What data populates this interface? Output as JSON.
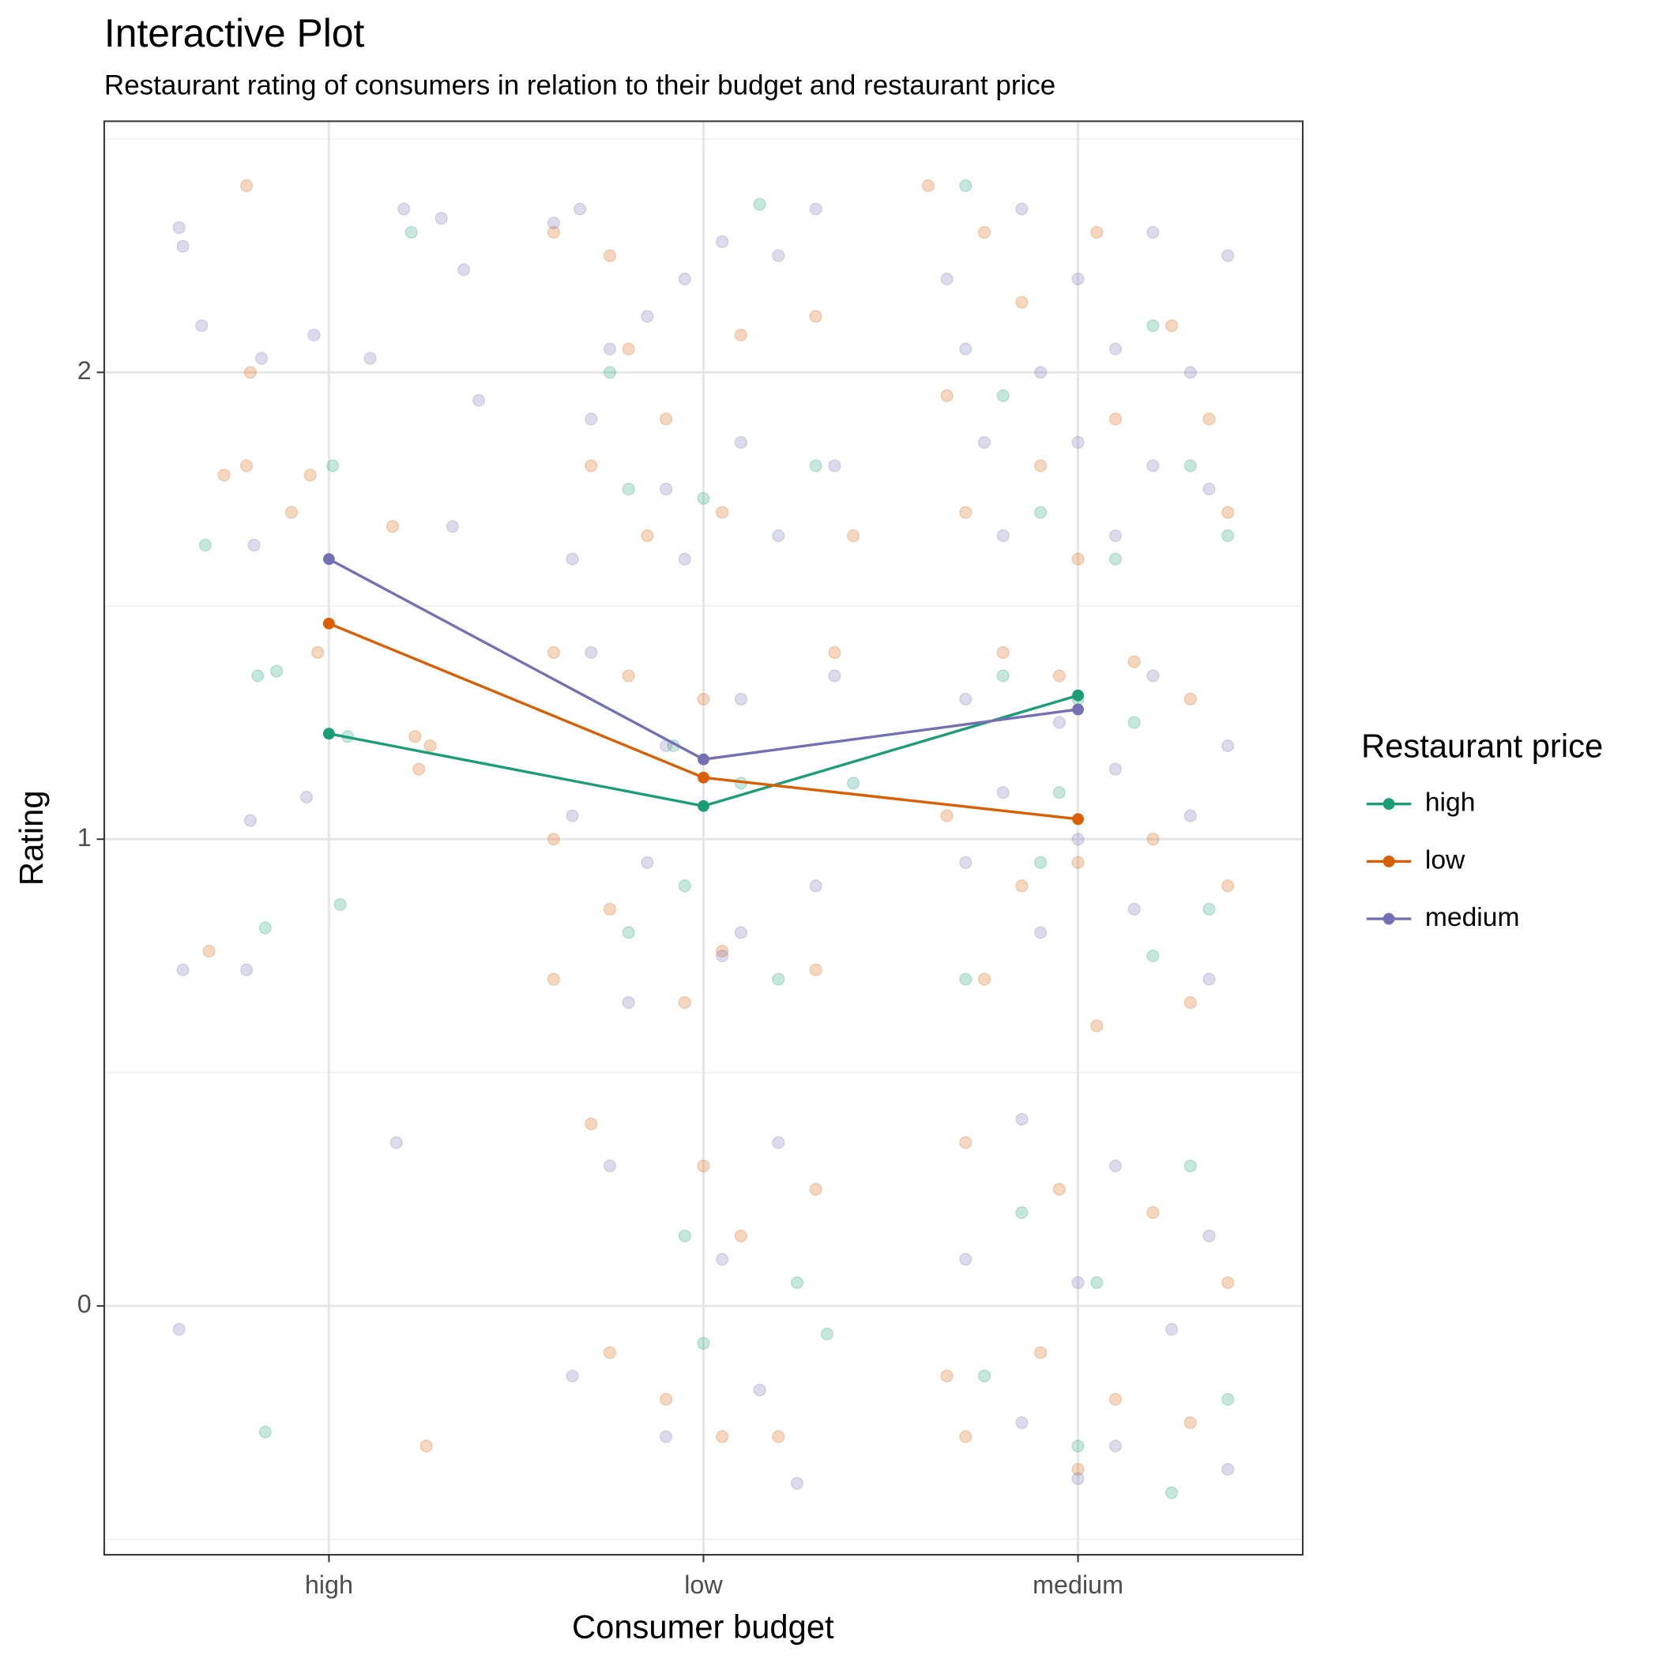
{
  "chart_data": [
    {
      "type": "scatter",
      "xlim": [
        0.4,
        3.6
      ],
      "ylim": [
        -0.533,
        2.538
      ],
      "opacity": 0.25,
      "series": [
        {
          "name": "high",
          "color": "#1b9e77",
          "x": [
            0.67,
            0.81,
            0.86,
            1.01,
            1.05,
            0.83,
            1.03,
            0.83,
            1.22,
            1.75,
            1.8,
            1.92,
            2.0,
            2.1,
            2.2,
            1.95,
            2.15,
            2.25,
            1.8,
            1.95,
            2.3,
            2.4,
            2.33,
            2.0,
            2.7,
            2.8,
            2.9,
            3.0,
            3.1,
            3.2,
            3.3,
            3.4,
            2.8,
            2.95,
            3.15,
            3.35,
            2.7,
            2.9,
            3.2,
            3.05,
            2.85,
            3.3,
            3.4,
            2.75,
            3.0,
            3.25
          ],
          "values": [
            1.63,
            1.35,
            1.36,
            1.8,
            1.22,
            0.81,
            0.86,
            -0.27,
            2.3,
            2.0,
            1.75,
            1.2,
            1.73,
            1.12,
            0.7,
            0.9,
            2.36,
            0.05,
            0.8,
            0.15,
            1.8,
            1.12,
            -0.06,
            -0.08,
            2.4,
            1.95,
            1.7,
            1.3,
            1.6,
            2.1,
            1.8,
            1.65,
            1.35,
            1.1,
            1.25,
            0.85,
            0.7,
            0.95,
            0.75,
            0.05,
            0.2,
            0.3,
            -0.2,
            -0.15,
            -0.3,
            -0.4
          ]
        },
        {
          "name": "low",
          "color": "#d95f02",
          "x": [
            0.78,
            0.79,
            0.72,
            0.78,
            0.95,
            0.9,
            1.17,
            0.97,
            1.23,
            1.27,
            1.24,
            0.68,
            1.26,
            1.6,
            1.75,
            1.8,
            1.9,
            2.1,
            2.3,
            1.7,
            1.85,
            2.05,
            2.4,
            1.6,
            1.8,
            2.0,
            2.35,
            1.6,
            1.75,
            2.05,
            2.3,
            1.6,
            1.95,
            1.7,
            2.0,
            2.1,
            1.75,
            2.05,
            2.2,
            2.3,
            1.9,
            2.6,
            2.75,
            2.85,
            3.05,
            3.25,
            3.35,
            2.65,
            2.9,
            3.1,
            3.4,
            2.7,
            3.0,
            2.8,
            2.95,
            3.15,
            3.3,
            2.65,
            2.85,
            3.0,
            3.2,
            3.4,
            2.75,
            3.05,
            3.3,
            2.7,
            2.95,
            3.2,
            3.4,
            2.65,
            2.9,
            3.1,
            3.3,
            2.7,
            3.0
          ],
          "values": [
            2.4,
            2.0,
            1.78,
            1.8,
            1.78,
            1.7,
            1.67,
            1.4,
            1.22,
            1.2,
            1.15,
            0.76,
            -0.3,
            2.3,
            2.25,
            2.05,
            1.9,
            2.08,
            2.12,
            1.8,
            1.65,
            1.7,
            1.65,
            1.4,
            1.35,
            1.3,
            1.4,
            1.0,
            0.85,
            0.76,
            0.72,
            0.7,
            0.65,
            0.39,
            0.3,
            0.15,
            -0.1,
            -0.28,
            -0.28,
            0.25,
            -0.2,
            2.4,
            2.3,
            2.15,
            2.3,
            2.1,
            1.9,
            1.95,
            1.8,
            1.9,
            1.7,
            1.7,
            1.6,
            1.4,
            1.35,
            1.38,
            1.3,
            1.05,
            0.9,
            0.95,
            1.0,
            0.9,
            0.7,
            0.6,
            0.65,
            0.35,
            0.25,
            0.2,
            0.05,
            -0.15,
            -0.1,
            -0.2,
            -0.25,
            -0.28,
            -0.35
          ]
        },
        {
          "name": "medium",
          "color": "#7570b3",
          "x": [
            0.6,
            0.61,
            0.66,
            0.82,
            0.96,
            1.11,
            1.2,
            1.3,
            1.36,
            1.4,
            1.33,
            0.8,
            0.61,
            0.78,
            0.79,
            0.94,
            1.18,
            0.6,
            1.6,
            1.67,
            1.75,
            1.85,
            1.95,
            2.05,
            2.2,
            2.3,
            1.7,
            1.9,
            2.1,
            2.35,
            1.65,
            1.95,
            2.2,
            1.7,
            1.9,
            2.1,
            2.35,
            1.65,
            1.85,
            2.1,
            2.3,
            1.8,
            2.05,
            1.75,
            2.05,
            2.2,
            1.65,
            1.9,
            2.15,
            2.25,
            2.65,
            2.85,
            3.0,
            3.2,
            3.4,
            2.7,
            2.9,
            3.1,
            3.3,
            2.75,
            3.0,
            3.2,
            3.35,
            2.8,
            3.1,
            2.7,
            2.95,
            3.2,
            3.4,
            2.8,
            3.1,
            2.7,
            3.0,
            3.3,
            2.9,
            3.15,
            3.35,
            2.85,
            3.1,
            3.35,
            2.7,
            3.0,
            3.25,
            2.85,
            3.1,
            3.4,
            3.0
          ],
          "values": [
            2.31,
            2.27,
            2.1,
            2.03,
            2.08,
            2.03,
            2.35,
            2.33,
            2.22,
            1.94,
            1.67,
            1.63,
            0.72,
            0.72,
            1.04,
            1.09,
            0.35,
            -0.05,
            2.32,
            2.35,
            2.05,
            2.12,
            2.2,
            2.28,
            2.25,
            2.35,
            1.9,
            1.75,
            1.85,
            1.8,
            1.6,
            1.6,
            1.65,
            1.4,
            1.2,
            1.3,
            1.35,
            1.05,
            0.95,
            0.8,
            0.9,
            0.65,
            0.75,
            0.3,
            0.1,
            0.35,
            -0.15,
            -0.28,
            -0.18,
            -0.38,
            2.2,
            2.35,
            2.2,
            2.3,
            2.25,
            2.05,
            2.0,
            2.05,
            2.0,
            1.85,
            1.85,
            1.8,
            1.75,
            1.65,
            1.65,
            1.3,
            1.25,
            1.35,
            1.2,
            1.1,
            1.15,
            0.95,
            1.0,
            1.05,
            0.8,
            0.85,
            0.7,
            0.4,
            0.3,
            0.15,
            0.1,
            0.05,
            -0.05,
            -0.25,
            -0.3,
            -0.35,
            -0.37
          ]
        }
      ]
    },
    {
      "type": "line",
      "title": "Interactive Plot",
      "subtitle": "Restaurant rating of consumers in relation to their budget and restaurant price",
      "x_label": "Consumer budget",
      "y_label": "Rating",
      "categories": [
        "high",
        "low",
        "medium"
      ],
      "ylim": [
        -0.533,
        2.538
      ],
      "yticks": [
        0,
        1,
        2
      ],
      "yminor_ticks": [
        -0.5,
        0.5,
        1.5,
        2.5
      ],
      "grid": true,
      "legend_title": "Restaurant price",
      "legend_position": "right",
      "series": [
        {
          "name": "high",
          "color": "#1b9e77",
          "values": [
            1.226,
            1.071,
            1.308
          ]
        },
        {
          "name": "low",
          "color": "#d95f02",
          "values": [
            1.462,
            1.132,
            1.043
          ]
        },
        {
          "name": "medium",
          "color": "#7570b3",
          "values": [
            1.6,
            1.171,
            1.278
          ]
        }
      ]
    }
  ]
}
